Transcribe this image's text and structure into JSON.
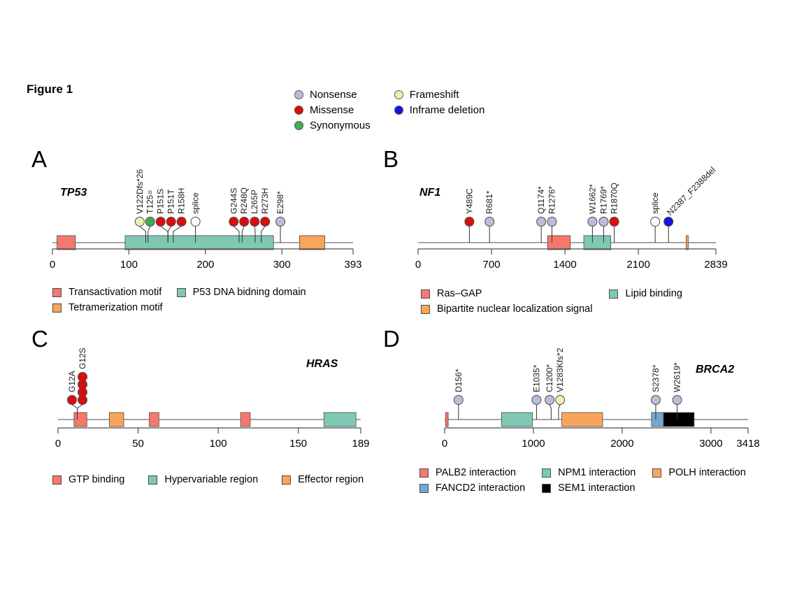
{
  "figure": {
    "title": "Figure 1"
  },
  "colors": {
    "nonsense": "#BEBADA",
    "missense": "#DC0D0D",
    "synonymous": "#3FAE4C",
    "frameshift": "#F0EDB2",
    "inframe_deletion": "#1414E6",
    "splice": "#FFFFFF",
    "salmon": "#F5786D",
    "teal": "#7FC8B3",
    "orange": "#F8A55B",
    "blue": "#73A8D2",
    "black": "#000000"
  },
  "mutation_type_legend": [
    {
      "label": "Nonsense",
      "type": "nonsense"
    },
    {
      "label": "Frameshift",
      "type": "frameshift"
    },
    {
      "label": "Missense",
      "type": "missense"
    },
    {
      "label": "Inframe deletion",
      "type": "inframe_deletion"
    },
    {
      "label": "Synonymous",
      "type": "synonymous"
    }
  ],
  "chart_data": [
    {
      "type": "lollipop",
      "panel": "A",
      "gene": "TP53",
      "xlim": [
        0,
        393
      ],
      "ticks": [
        0,
        100,
        200,
        300,
        393
      ],
      "mutations": [
        {
          "label": "V122Dfs*26",
          "pos": 122,
          "type": "frameshift",
          "count": 1
        },
        {
          "label": "T125=",
          "pos": 125,
          "type": "synonymous",
          "count": 1
        },
        {
          "label": "P151S",
          "pos": 151,
          "type": "missense",
          "count": 1
        },
        {
          "label": "P151T",
          "pos": 151,
          "type": "missense",
          "count": 1
        },
        {
          "label": "R158H",
          "pos": 158,
          "type": "missense",
          "count": 1
        },
        {
          "label": "splice",
          "pos": 187,
          "type": "splice",
          "count": 1
        },
        {
          "label": "G244S",
          "pos": 244,
          "type": "missense",
          "count": 1
        },
        {
          "label": "R248Q",
          "pos": 248,
          "type": "missense",
          "count": 1
        },
        {
          "label": "L265P",
          "pos": 265,
          "type": "missense",
          "count": 1
        },
        {
          "label": "R273H",
          "pos": 273,
          "type": "missense",
          "count": 1
        },
        {
          "label": "E298*",
          "pos": 298,
          "type": "nonsense",
          "count": 1
        }
      ],
      "domains": [
        {
          "name": "Transactivation motif",
          "start": 6,
          "end": 30,
          "color": "salmon"
        },
        {
          "name": "P53 DNA bidning domain",
          "start": 95,
          "end": 289,
          "color": "teal"
        },
        {
          "name": "Tetramerization motif",
          "start": 323,
          "end": 356,
          "color": "orange"
        }
      ],
      "domain_legend": {
        "columns": 2,
        "items": [
          {
            "label": "Transactivation motif",
            "color": "salmon"
          },
          {
            "label": "P53 DNA bidning domain",
            "color": "teal"
          },
          {
            "label": "Tetramerization motif",
            "color": "orange"
          }
        ]
      }
    },
    {
      "type": "lollipop",
      "panel": "B",
      "gene": "NF1",
      "xlim": [
        0,
        2839
      ],
      "ticks": [
        0,
        700,
        1400,
        2100,
        2839
      ],
      "mutations": [
        {
          "label": "Y489C",
          "pos": 489,
          "type": "missense",
          "count": 1
        },
        {
          "label": "R681*",
          "pos": 681,
          "type": "nonsense",
          "count": 1
        },
        {
          "label": "Q1174*",
          "pos": 1174,
          "type": "nonsense",
          "count": 1
        },
        {
          "label": "R1276*",
          "pos": 1276,
          "type": "nonsense",
          "count": 1
        },
        {
          "label": "W1662*",
          "pos": 1662,
          "type": "nonsense",
          "count": 1
        },
        {
          "label": "R1769*",
          "pos": 1769,
          "type": "nonsense",
          "count": 1
        },
        {
          "label": "R1870Q",
          "pos": 1870,
          "type": "missense",
          "count": 1
        },
        {
          "label": "splice",
          "pos": 2260,
          "type": "splice",
          "count": 1
        },
        {
          "label": "N2387_F2388del",
          "pos": 2387,
          "type": "inframe_deletion",
          "count": 1
        }
      ],
      "domains": [
        {
          "name": "Ras–GAP",
          "start": 1235,
          "end": 1451,
          "color": "salmon"
        },
        {
          "name": "Lipid binding",
          "start": 1580,
          "end": 1837,
          "color": "teal"
        },
        {
          "name": "Bipartite nuclear localization signal",
          "start": 2555,
          "end": 2575,
          "color": "orange"
        }
      ],
      "domain_legend": {
        "columns": 2,
        "items": [
          {
            "label": "Ras–GAP",
            "color": "salmon"
          },
          {
            "label": "Lipid binding",
            "color": "teal"
          },
          {
            "label": "Bipartite nuclear localization signal",
            "color": "orange"
          }
        ]
      }
    },
    {
      "type": "lollipop",
      "panel": "C",
      "gene": "HRAS",
      "xlim": [
        0,
        189
      ],
      "ticks": [
        0,
        50,
        100,
        150,
        189
      ],
      "mutations": [
        {
          "label": "G12A",
          "pos": 12,
          "type": "missense",
          "count": 1
        },
        {
          "label": "G12S",
          "pos": 12,
          "type": "missense",
          "count": 4
        }
      ],
      "domains": [
        {
          "name": "GTP binding",
          "start": 10,
          "end": 18,
          "color": "salmon"
        },
        {
          "name": "Effector region",
          "start": 32,
          "end": 41,
          "color": "orange"
        },
        {
          "name": "GTP binding",
          "start": 57,
          "end": 63,
          "color": "salmon"
        },
        {
          "name": "GTP binding",
          "start": 114,
          "end": 120,
          "color": "salmon"
        },
        {
          "name": "Hypervariable region",
          "start": 166,
          "end": 186,
          "color": "teal"
        }
      ],
      "domain_legend": {
        "columns": 3,
        "items": [
          {
            "label": "GTP binding",
            "color": "salmon"
          },
          {
            "label": "Hypervariable region",
            "color": "teal"
          },
          {
            "label": "Effector region",
            "color": "orange"
          }
        ]
      }
    },
    {
      "type": "lollipop",
      "panel": "D",
      "gene": "BRCA2",
      "xlim": [
        0,
        3418
      ],
      "ticks": [
        0,
        1000,
        2000,
        3000,
        3418
      ],
      "mutations": [
        {
          "label": "D156*",
          "pos": 156,
          "type": "nonsense",
          "count": 1
        },
        {
          "label": "E1035*",
          "pos": 1035,
          "type": "nonsense",
          "count": 1
        },
        {
          "label": "C1200*",
          "pos": 1200,
          "type": "nonsense",
          "count": 1
        },
        {
          "label": "V1283Kfs*2",
          "pos": 1283,
          "type": "frameshift",
          "count": 1
        },
        {
          "label": "S2378*",
          "pos": 2378,
          "type": "nonsense",
          "count": 1
        },
        {
          "label": "W2619*",
          "pos": 2619,
          "type": "nonsense",
          "count": 1
        }
      ],
      "domains": [
        {
          "name": "PALB2 interaction",
          "start": 10,
          "end": 40,
          "color": "salmon"
        },
        {
          "name": "NPM1 interaction",
          "start": 640,
          "end": 990,
          "color": "teal"
        },
        {
          "name": "POLH interaction",
          "start": 1320,
          "end": 1780,
          "color": "orange"
        },
        {
          "name": "FANCD2 interaction",
          "start": 2330,
          "end": 2530,
          "color": "blue"
        },
        {
          "name": "SEM1 interaction",
          "start": 2465,
          "end": 2810,
          "color": "black"
        }
      ],
      "domain_legend": {
        "columns": 3,
        "items": [
          {
            "label": "PALB2 interaction",
            "color": "salmon"
          },
          {
            "label": "NPM1 interaction",
            "color": "teal"
          },
          {
            "label": "POLH interaction",
            "color": "orange"
          },
          {
            "label": "FANCD2 interaction",
            "color": "blue"
          },
          {
            "label": "SEM1 interaction",
            "color": "black"
          }
        ]
      }
    }
  ]
}
